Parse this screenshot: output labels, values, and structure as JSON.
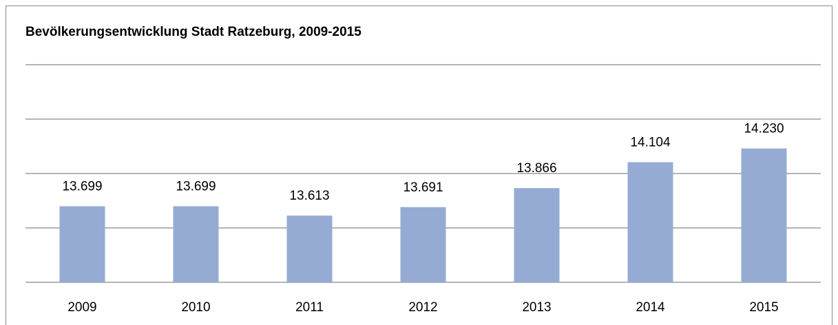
{
  "chart_data": {
    "type": "bar",
    "title": "Bevölkerungsentwicklung Stadt Ratzeburg, 2009-2015",
    "categories": [
      "2009",
      "2010",
      "2011",
      "2012",
      "2013",
      "2014",
      "2015"
    ],
    "values": [
      13699,
      13699,
      13613,
      13691,
      13866,
      14104,
      14230
    ],
    "value_labels": [
      "13.699",
      "13.699",
      "13.613",
      "13.691",
      "13.866",
      "14.104",
      "14.230"
    ],
    "color": "#95abd3",
    "ylim": [
      13000,
      15000
    ],
    "yticks": [
      13000,
      13500,
      14000,
      14500,
      15000
    ],
    "grid": true
  }
}
